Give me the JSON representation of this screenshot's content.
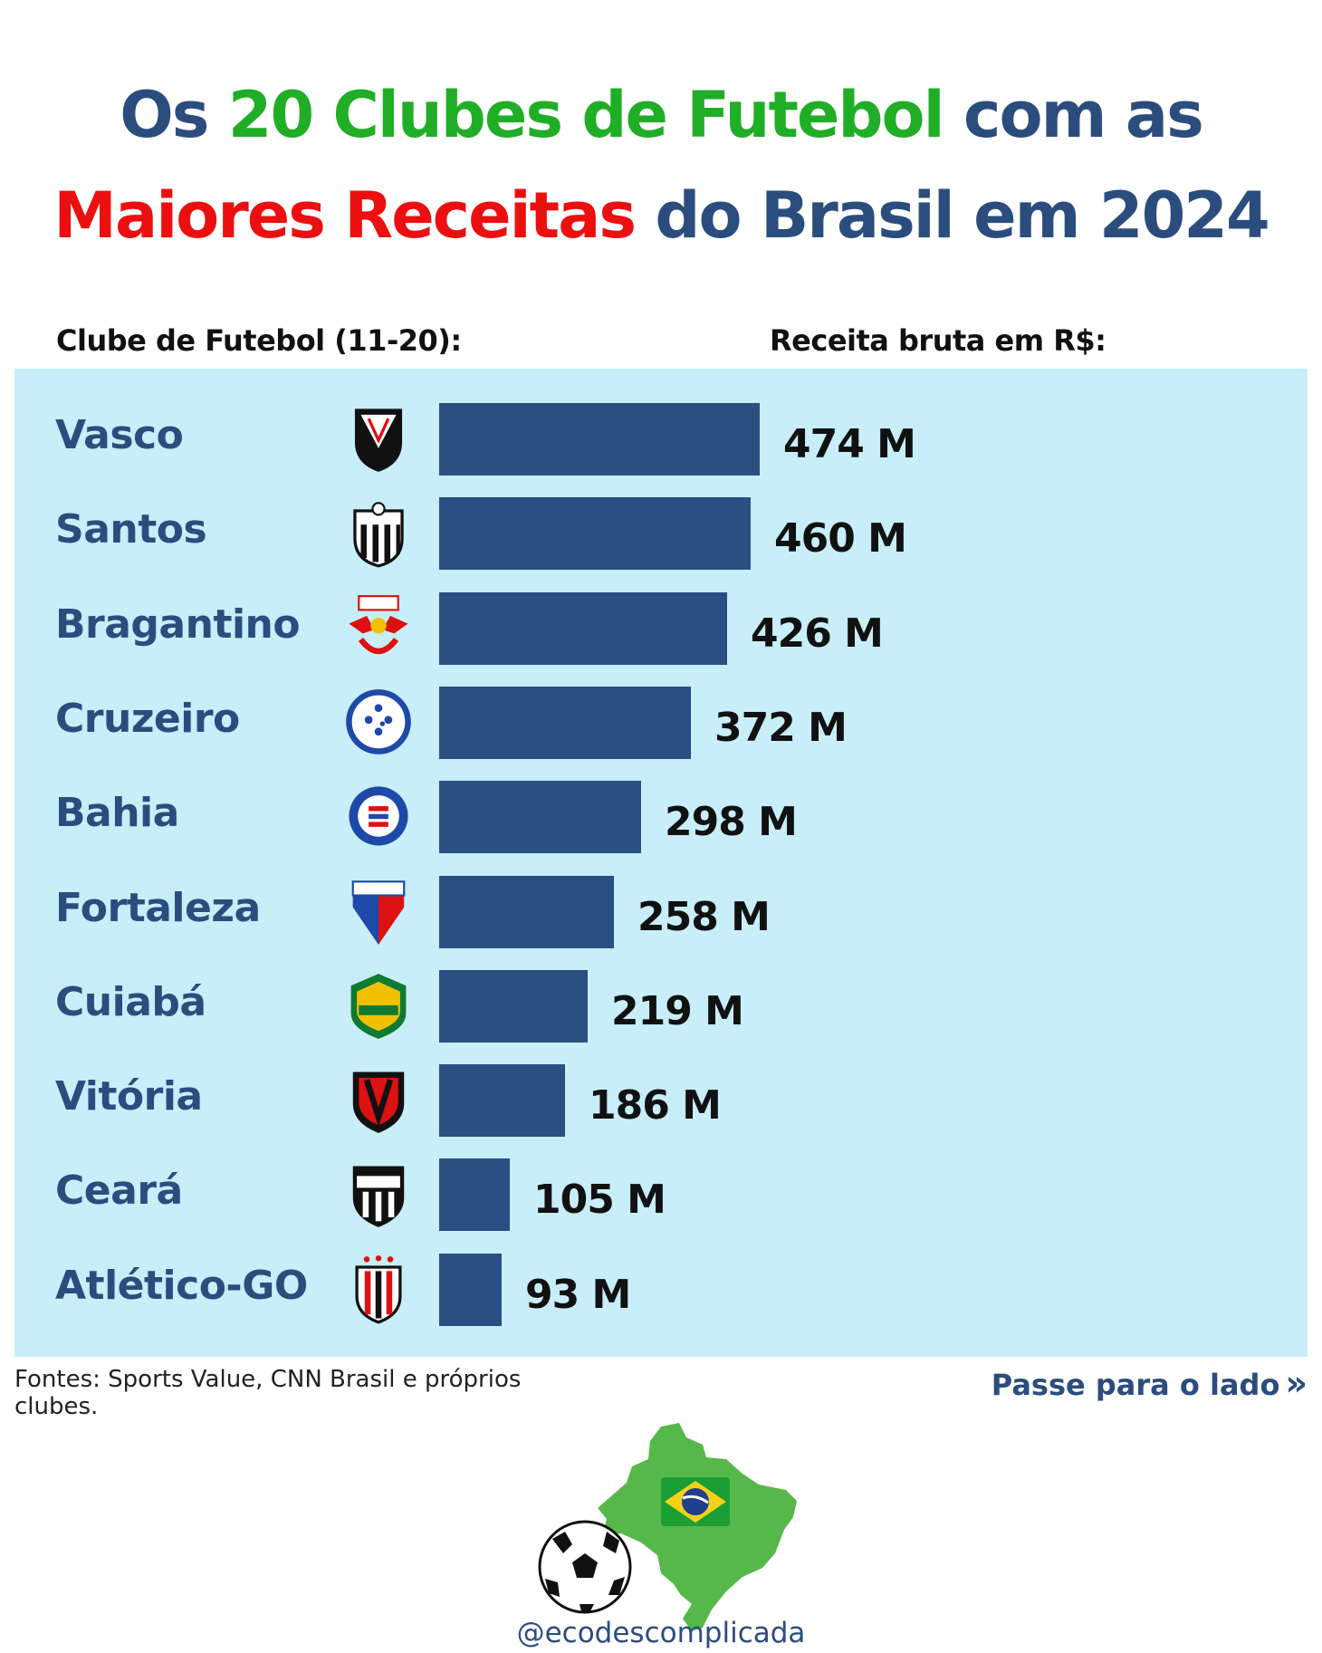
{
  "title": {
    "line1": [
      {
        "text": "Os ",
        "color": "navy"
      },
      {
        "text": "20 Clubes de Futebol",
        "color": "green"
      },
      {
        "text": " com as",
        "color": "navy"
      }
    ],
    "line2": [
      {
        "text": "Maiores Receitas",
        "color": "red"
      },
      {
        "text": " do Brasil em 2024",
        "color": "navy"
      }
    ]
  },
  "headers": {
    "club": "Clube de Futebol (11-20):",
    "revenue": "Receita bruta em R$:"
  },
  "colors": {
    "navy": "#2b4d7e",
    "green": "#1fae26",
    "red": "#ec0f0f",
    "bar": "#2a4f82",
    "panel": "#c7eef9"
  },
  "chart_data": {
    "type": "bar",
    "orientation": "horizontal",
    "categories": [
      "Vasco",
      "Santos",
      "Bragantino",
      "Cruzeiro",
      "Bahia",
      "Fortaleza",
      "Cuiabá",
      "Vitória",
      "Ceará",
      "Atlético-GO"
    ],
    "values": [
      474,
      460,
      426,
      372,
      298,
      258,
      219,
      186,
      105,
      93
    ],
    "value_labels": [
      "474 M",
      "460 M",
      "426 M",
      "372 M",
      "298 M",
      "258 M",
      "219 M",
      "186 M",
      "105 M",
      "93 M"
    ],
    "crest_icons": [
      "vasco-crest-icon",
      "santos-crest-icon",
      "bragantino-crest-icon",
      "cruzeiro-crest-icon",
      "bahia-crest-icon",
      "fortaleza-crest-icon",
      "cuiaba-crest-icon",
      "vitoria-crest-icon",
      "ceara-crest-icon",
      "atletico-go-crest-icon"
    ],
    "unit": "M",
    "xlim": [
      0,
      474
    ]
  },
  "footer": {
    "sources": "Fontes: Sports Value, CNN Brasil e próprios clubes.",
    "swipe": "Passe para o lado",
    "swipe_icon": "double-chevron-right-icon",
    "handle": "@ecodescomplicada",
    "logo_icons": [
      "brazil-map-icon",
      "brazil-flag-icon",
      "soccer-ball-icon"
    ]
  }
}
